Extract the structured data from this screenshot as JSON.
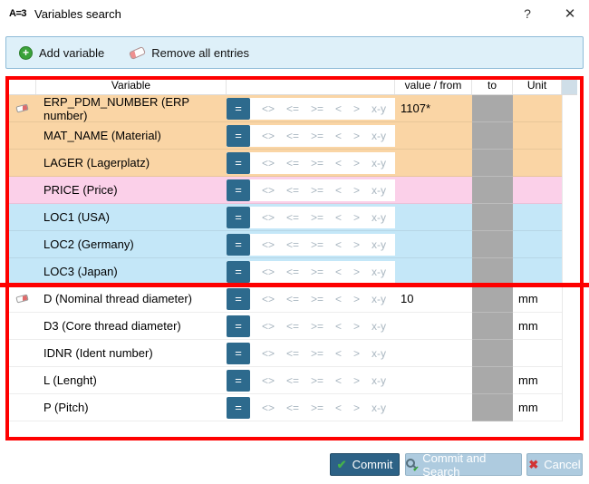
{
  "window": {
    "logo": "A=3",
    "title": "Variables search",
    "help_label": "?",
    "close_label": "✕"
  },
  "toolbar": {
    "add_label": "Add variable",
    "remove_label": "Remove all entries"
  },
  "table": {
    "headers": {
      "variable": "Variable",
      "value": "value / from",
      "to": "to",
      "unit": "Unit"
    },
    "operators": [
      "=",
      "<>",
      "<=",
      ">=",
      "<",
      ">",
      "x-y"
    ],
    "operator_names": [
      "equals",
      "not-equal",
      "less-equal",
      "greater-equal",
      "less-than",
      "greater-than",
      "range"
    ],
    "selected_operator_index": 0,
    "groups": [
      {
        "rows": [
          {
            "name": "ERP_PDM_NUMBER (ERP number)",
            "color": "orange",
            "value": "1107*",
            "unit": "",
            "icon": true
          },
          {
            "name": "MAT_NAME (Material)",
            "color": "orange",
            "value": "",
            "unit": "",
            "icon": false
          },
          {
            "name": "LAGER (Lagerplatz)",
            "color": "orange",
            "value": "",
            "unit": "",
            "icon": false
          },
          {
            "name": "PRICE (Price)",
            "color": "pink",
            "value": "",
            "unit": "",
            "icon": false
          },
          {
            "name": "LOC1 (USA)",
            "color": "blue",
            "value": "",
            "unit": "",
            "icon": false
          },
          {
            "name": "LOC2 (Germany)",
            "color": "blue",
            "value": "",
            "unit": "",
            "icon": false
          },
          {
            "name": "LOC3 (Japan)",
            "color": "blue",
            "value": "",
            "unit": "",
            "icon": false
          }
        ]
      },
      {
        "rows": [
          {
            "name": "D (Nominal thread diameter)",
            "color": "white",
            "value": "10",
            "unit": "mm",
            "icon": true
          },
          {
            "name": "D3 (Core thread diameter)",
            "color": "white",
            "value": "",
            "unit": "mm",
            "icon": false
          },
          {
            "name": "IDNR (Ident number)",
            "color": "white",
            "value": "",
            "unit": "",
            "icon": false
          },
          {
            "name": "L (Lenght)",
            "color": "white",
            "value": "",
            "unit": "mm",
            "icon": false
          },
          {
            "name": "P (Pitch)",
            "color": "white",
            "value": "",
            "unit": "mm",
            "icon": false
          }
        ]
      }
    ]
  },
  "footer": {
    "commit": "Commit",
    "commit_search": "Commit and Search",
    "cancel": "Cancel"
  },
  "colors": {
    "row_orange": "#FAD5A5",
    "row_pink": "#FBD0E9",
    "row_blue": "#C4E7F8",
    "disabled_cell": "#A9A9A9",
    "operator_selected": "#2D6A8D",
    "annotation_red": "#FE0000",
    "button_primary": "#2D6286",
    "button_secondary": "#AECBDF",
    "toolbar_bg": "#DEF0F9"
  }
}
